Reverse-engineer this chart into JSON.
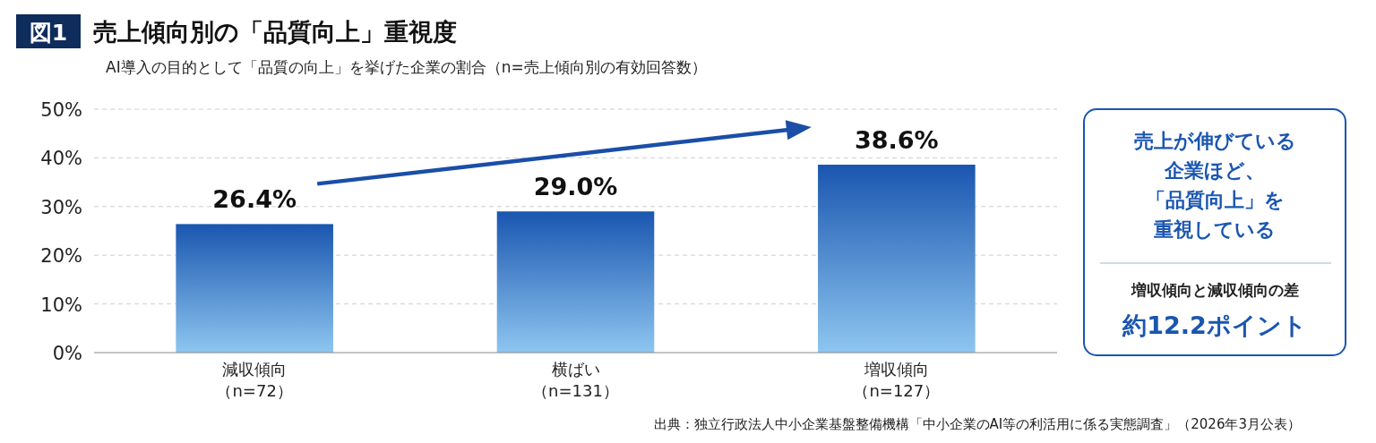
{
  "chart_data": {
    "type": "bar",
    "title": "図1 売上傾向別の「品質向上」重視度",
    "subtitle": "AI導入の目的として「品質の向上」を挙げた企業の割合（n=売上傾向別の有効回答数）",
    "categories": [
      "減収傾向（n=72）",
      "横ばい（n=131）",
      "増収傾向（n=127）"
    ],
    "values": [
      26.4,
      29.0,
      38.6
    ],
    "value_labels": [
      "26.4%",
      "29.0%",
      "38.6%"
    ],
    "color": "#1a56b0",
    "ylim": [
      0,
      50
    ],
    "yticks": [
      {
        "value": 0,
        "label": "0%"
      },
      {
        "value": 10,
        "label": "10%"
      },
      {
        "value": 20,
        "label": "20%"
      },
      {
        "value": 30,
        "label": "30%"
      },
      {
        "value": 40,
        "label": "40%"
      },
      {
        "value": 50,
        "label": "50%"
      }
    ],
    "grid": "y",
    "annotations": [
      "売上が伸びている",
      "企業ほど、",
      "「品質向上」を",
      "重視している",
      "増収傾向と減収傾向の差",
      "約12.2ポイント",
      "出典：独立行政法人中小企業基盤整備機構「中小企業のAI等の利活用に係る実態調査」（2026年3月公表）"
    ]
  }
}
